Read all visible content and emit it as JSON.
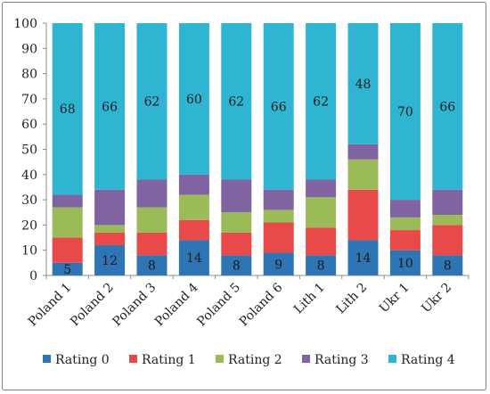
{
  "chart_data": {
    "type": "bar",
    "stacked": true,
    "categories": [
      "Poland 1",
      "Poland 2",
      "Poland 3",
      "Poland 4",
      "Poland 5",
      "Poland 6",
      "Lith 1",
      "Lith 2",
      "Ukr 1",
      "Ukr 2"
    ],
    "series": [
      {
        "name": "Rating 0",
        "color": "#2e75b6",
        "values": [
          5,
          12,
          8,
          14,
          8,
          9,
          8,
          14,
          10,
          8
        ]
      },
      {
        "name": "Rating 1",
        "color": "#e84a4a",
        "values": [
          10,
          5,
          9,
          8,
          9,
          12,
          11,
          20,
          8,
          12
        ]
      },
      {
        "name": "Rating 2",
        "color": "#9bbb59",
        "values": [
          12,
          3,
          10,
          10,
          8,
          5,
          12,
          12,
          5,
          4
        ]
      },
      {
        "name": "Rating 3",
        "color": "#8064a2",
        "values": [
          5,
          14,
          11,
          8,
          13,
          8,
          7,
          6,
          7,
          10
        ]
      },
      {
        "name": "Rating 4",
        "color": "#2fb5d1",
        "values": [
          68,
          66,
          62,
          60,
          62,
          66,
          62,
          48,
          70,
          66
        ]
      }
    ],
    "data_labels": {
      "Rating 0": [
        "5",
        "12",
        "8",
        "14",
        "8",
        "9",
        "8",
        "14",
        "10",
        "8"
      ],
      "Rating 4": [
        "68",
        "66",
        "62",
        "60",
        "62",
        "66",
        "62",
        "48",
        "70",
        "66"
      ]
    },
    "ylim": [
      0,
      100
    ],
    "yticks": [
      "0",
      "10",
      "20",
      "30",
      "40",
      "50",
      "60",
      "70",
      "80",
      "90",
      "100"
    ],
    "legend": {
      "position": "bottom"
    },
    "title": "",
    "xlabel": "",
    "ylabel": "",
    "grid": false
  }
}
